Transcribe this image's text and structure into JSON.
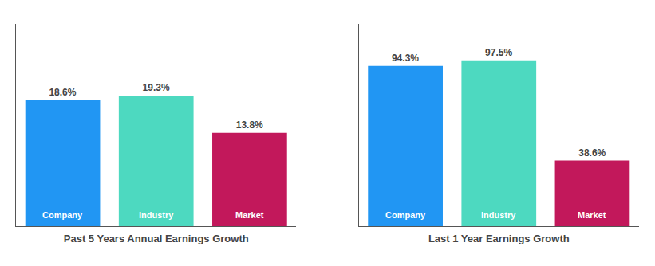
{
  "chart_data": [
    {
      "type": "bar",
      "title": "Past 5 Years Annual Earnings Growth",
      "categories": [
        "Company",
        "Industry",
        "Market"
      ],
      "values": [
        18.6,
        19.3,
        13.8
      ],
      "value_labels": [
        "18.6%",
        "19.3%",
        "13.8%"
      ],
      "colors": [
        "#2196f3",
        "#4dd9c0",
        "#c2185b"
      ],
      "ylim": [
        0,
        29.915
      ],
      "data_labels": true,
      "tick_labels": false,
      "grid": false
    },
    {
      "type": "bar",
      "title": "Last 1 Year Earnings Growth",
      "categories": [
        "Company",
        "Industry",
        "Market"
      ],
      "values": [
        94.3,
        97.5,
        38.6
      ],
      "value_labels": [
        "94.3%",
        "97.5%",
        "38.6%"
      ],
      "colors": [
        "#2196f3",
        "#4dd9c0",
        "#c2185b"
      ],
      "ylim": [
        0,
        118.95
      ],
      "data_labels": true,
      "tick_labels": false,
      "grid": false
    }
  ]
}
